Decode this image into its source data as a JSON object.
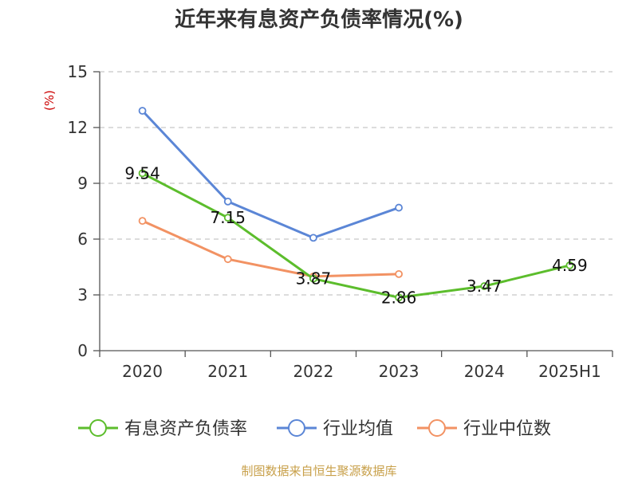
{
  "title": "近年来有息资产负债率情况(%)",
  "footer": "制图数据来自恒生聚源数据库",
  "chart_data": {
    "type": "line",
    "title": "近年来有息资产负债率情况(%)",
    "ylabel": "(%)",
    "xlabel": "",
    "categories": [
      "2020",
      "2021",
      "2022",
      "2023",
      "2024",
      "2025H1"
    ],
    "ylim": [
      0,
      15
    ],
    "yticks": [
      "0",
      "3",
      "6",
      "9",
      "12",
      "15"
    ],
    "grid": true,
    "legend_position": "bottom",
    "series": [
      {
        "name": "有息资产负债率",
        "color": "#5cbd2c",
        "values": [
          9.54,
          7.15,
          3.87,
          2.86,
          3.47,
          4.59
        ],
        "labels": [
          "9.54",
          "7.15",
          "3.87",
          "2.86",
          "3.47",
          "4.59"
        ]
      },
      {
        "name": "行业均值",
        "color": "#5b86d6",
        "values": [
          12.9,
          8.02,
          6.07,
          7.69,
          null,
          null
        ]
      },
      {
        "name": "行业中位数",
        "color": "#f29263",
        "values": [
          6.98,
          4.92,
          3.99,
          4.12,
          null,
          null
        ]
      }
    ]
  }
}
